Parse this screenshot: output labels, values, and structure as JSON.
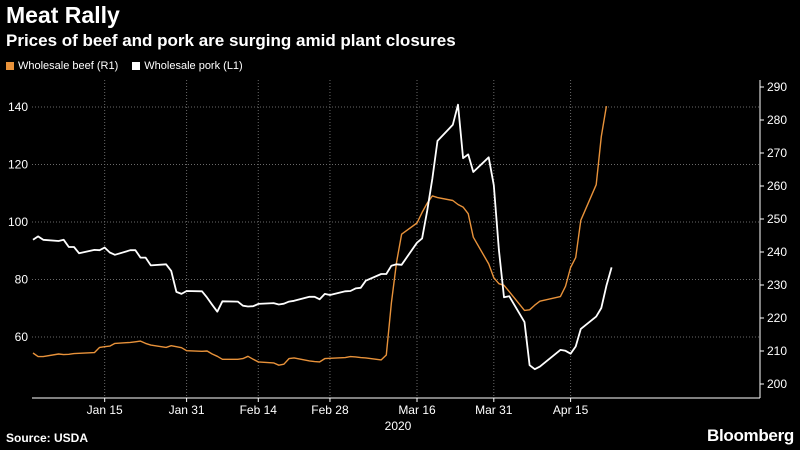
{
  "header": {
    "title": "Meat Rally",
    "subtitle": "Prices of beef and pork are surging amid plant closures"
  },
  "footer": {
    "source": "Source: USDA",
    "brand": "Bloomberg"
  },
  "colors": {
    "background": "#000000",
    "beef": "#e8923a",
    "pork": "#ffffff",
    "axis": "#ffffff",
    "grid": "#6a6a6a"
  },
  "chart_data": {
    "type": "line",
    "legend_placement": "top-left",
    "grid": true,
    "x_ticks": [
      "Jan 15",
      "Jan 31",
      "Feb 14",
      "Feb 28",
      "Mar 16",
      "Mar 31",
      "Apr 15"
    ],
    "x_year_label": "2020",
    "left_axis": {
      "ticks": [
        60,
        80,
        100,
        120,
        140
      ],
      "ylim": [
        40,
        150
      ]
    },
    "right_axis": {
      "ticks": [
        200,
        210,
        220,
        230,
        240,
        250,
        260,
        270,
        280,
        290
      ],
      "ylim": [
        195,
        292
      ]
    },
    "series": [
      {
        "name": "Wholesale beef (R1)",
        "axis": "right",
        "color": "#e8923a",
        "points": [
          [
            "2020-01-01",
            209.4
          ],
          [
            "2020-01-02",
            208.3
          ],
          [
            "2020-01-03",
            208.3
          ],
          [
            "2020-01-06",
            209.1
          ],
          [
            "2020-01-07",
            208.9
          ],
          [
            "2020-01-08",
            209.0
          ],
          [
            "2020-01-09",
            209.2
          ],
          [
            "2020-01-10",
            209.3
          ],
          [
            "2020-01-13",
            209.5
          ],
          [
            "2020-01-14",
            211.1
          ],
          [
            "2020-01-15",
            211.3
          ],
          [
            "2020-01-16",
            211.5
          ],
          [
            "2020-01-17",
            212.3
          ],
          [
            "2020-01-20",
            212.6
          ],
          [
            "2020-01-21",
            212.8
          ],
          [
            "2020-01-22",
            213.0
          ],
          [
            "2020-01-23",
            212.3
          ],
          [
            "2020-01-24",
            211.8
          ],
          [
            "2020-01-27",
            211.1
          ],
          [
            "2020-01-28",
            211.6
          ],
          [
            "2020-01-29",
            211.3
          ],
          [
            "2020-01-30",
            211.0
          ],
          [
            "2020-01-31",
            210.1
          ],
          [
            "2020-02-03",
            209.9
          ],
          [
            "2020-02-04",
            210.0
          ],
          [
            "2020-02-05",
            209.1
          ],
          [
            "2020-02-06",
            208.4
          ],
          [
            "2020-02-07",
            207.5
          ],
          [
            "2020-02-10",
            207.5
          ],
          [
            "2020-02-11",
            207.7
          ],
          [
            "2020-02-12",
            208.4
          ],
          [
            "2020-02-13",
            207.5
          ],
          [
            "2020-02-14",
            206.7
          ],
          [
            "2020-02-17",
            206.4
          ],
          [
            "2020-02-18",
            205.7
          ],
          [
            "2020-02-19",
            206.0
          ],
          [
            "2020-02-20",
            207.7
          ],
          [
            "2020-02-21",
            207.9
          ],
          [
            "2020-02-24",
            207.0
          ],
          [
            "2020-02-25",
            206.8
          ],
          [
            "2020-02-26",
            206.7
          ],
          [
            "2020-02-27",
            207.7
          ],
          [
            "2020-02-28",
            207.8
          ],
          [
            "2020-03-02",
            208.0
          ],
          [
            "2020-03-03",
            208.3
          ],
          [
            "2020-03-04",
            208.2
          ],
          [
            "2020-03-05",
            208.0
          ],
          [
            "2020-03-06",
            207.9
          ],
          [
            "2020-03-09",
            207.3
          ],
          [
            "2020-03-10",
            208.8
          ],
          [
            "2020-03-11",
            224.6
          ],
          [
            "2020-03-12",
            236.8
          ],
          [
            "2020-03-13",
            245.4
          ],
          [
            "2020-03-16",
            248.8
          ],
          [
            "2020-03-17",
            252.0
          ],
          [
            "2020-03-18",
            254.8
          ],
          [
            "2020-03-19",
            257.0
          ],
          [
            "2020-03-20",
            256.5
          ],
          [
            "2020-03-23",
            255.6
          ],
          [
            "2020-03-24",
            254.4
          ],
          [
            "2020-03-25",
            253.6
          ],
          [
            "2020-03-26",
            251.6
          ],
          [
            "2020-03-27",
            244.5
          ],
          [
            "2020-03-30",
            236.4
          ],
          [
            "2020-03-31",
            232.2
          ],
          [
            "2020-04-01",
            230.4
          ],
          [
            "2020-04-02",
            229.9
          ],
          [
            "2020-04-03",
            228.0
          ],
          [
            "2020-04-06",
            222.3
          ],
          [
            "2020-04-07",
            222.5
          ],
          [
            "2020-04-08",
            223.9
          ],
          [
            "2020-04-09",
            225.1
          ],
          [
            "2020-04-13",
            226.5
          ],
          [
            "2020-04-14",
            229.6
          ],
          [
            "2020-04-15",
            235.3
          ],
          [
            "2020-04-16",
            238.3
          ],
          [
            "2020-04-17",
            249.6
          ],
          [
            "2020-04-20",
            260.4
          ],
          [
            "2020-04-21",
            275.0
          ],
          [
            "2020-04-22",
            284.2
          ]
        ]
      },
      {
        "name": "Wholesale pork (L1)",
        "axis": "left",
        "color": "#ffffff",
        "points": [
          [
            "2020-01-01",
            93.8
          ],
          [
            "2020-01-02",
            95.0
          ],
          [
            "2020-01-03",
            93.8
          ],
          [
            "2020-01-06",
            93.4
          ],
          [
            "2020-01-07",
            93.8
          ],
          [
            "2020-01-08",
            91.3
          ],
          [
            "2020-01-09",
            91.3
          ],
          [
            "2020-01-10",
            89.1
          ],
          [
            "2020-01-13",
            90.3
          ],
          [
            "2020-01-14",
            90.2
          ],
          [
            "2020-01-15",
            91.1
          ],
          [
            "2020-01-16",
            89.4
          ],
          [
            "2020-01-17",
            88.6
          ],
          [
            "2020-01-20",
            90.2
          ],
          [
            "2020-01-21",
            90.2
          ],
          [
            "2020-01-22",
            87.6
          ],
          [
            "2020-01-23",
            87.6
          ],
          [
            "2020-01-24",
            84.9
          ],
          [
            "2020-01-27",
            85.3
          ],
          [
            "2020-01-28",
            83.0
          ],
          [
            "2020-01-29",
            75.7
          ],
          [
            "2020-01-30",
            75.0
          ],
          [
            "2020-01-31",
            76.0
          ],
          [
            "2020-02-03",
            75.9
          ],
          [
            "2020-02-04",
            73.7
          ],
          [
            "2020-02-05",
            71.2
          ],
          [
            "2020-02-06",
            68.8
          ],
          [
            "2020-02-07",
            72.4
          ],
          [
            "2020-02-10",
            72.3
          ],
          [
            "2020-02-11",
            70.9
          ],
          [
            "2020-02-12",
            70.6
          ],
          [
            "2020-02-13",
            70.7
          ],
          [
            "2020-02-14",
            71.5
          ],
          [
            "2020-02-17",
            71.8
          ],
          [
            "2020-02-18",
            71.3
          ],
          [
            "2020-02-19",
            71.6
          ],
          [
            "2020-02-20",
            72.3
          ],
          [
            "2020-02-21",
            72.6
          ],
          [
            "2020-02-24",
            74.0
          ],
          [
            "2020-02-25",
            74.0
          ],
          [
            "2020-02-26",
            73.1
          ],
          [
            "2020-02-27",
            75.0
          ],
          [
            "2020-02-28",
            74.6
          ],
          [
            "2020-03-02",
            75.9
          ],
          [
            "2020-03-03",
            76.0
          ],
          [
            "2020-03-04",
            76.9
          ],
          [
            "2020-03-05",
            77.1
          ],
          [
            "2020-03-06",
            79.6
          ],
          [
            "2020-03-09",
            81.9
          ],
          [
            "2020-03-10",
            81.9
          ],
          [
            "2020-03-11",
            84.8
          ],
          [
            "2020-03-12",
            85.3
          ],
          [
            "2020-03-13",
            85.1
          ],
          [
            "2020-03-16",
            92.8
          ],
          [
            "2020-03-17",
            94.3
          ],
          [
            "2020-03-18",
            103.9
          ],
          [
            "2020-03-19",
            115.2
          ],
          [
            "2020-03-20",
            128.2
          ],
          [
            "2020-03-23",
            133.8
          ],
          [
            "2020-03-24",
            140.8
          ],
          [
            "2020-03-25",
            122.2
          ],
          [
            "2020-03-26",
            123.5
          ],
          [
            "2020-03-27",
            117.4
          ],
          [
            "2020-03-30",
            122.5
          ],
          [
            "2020-03-31",
            112.8
          ],
          [
            "2020-04-01",
            90.3
          ],
          [
            "2020-04-02",
            73.8
          ],
          [
            "2020-04-03",
            74.2
          ],
          [
            "2020-04-06",
            65.2
          ],
          [
            "2020-04-07",
            50.2
          ],
          [
            "2020-04-08",
            48.8
          ],
          [
            "2020-04-09",
            49.7
          ],
          [
            "2020-04-13",
            55.5
          ],
          [
            "2020-04-14",
            55.2
          ],
          [
            "2020-04-15",
            54.2
          ],
          [
            "2020-04-16",
            56.7
          ],
          [
            "2020-04-17",
            62.8
          ],
          [
            "2020-04-20",
            67.1
          ],
          [
            "2020-04-21",
            70.1
          ],
          [
            "2020-04-22",
            77.8
          ],
          [
            "2020-04-23",
            84.2
          ]
        ]
      }
    ]
  }
}
